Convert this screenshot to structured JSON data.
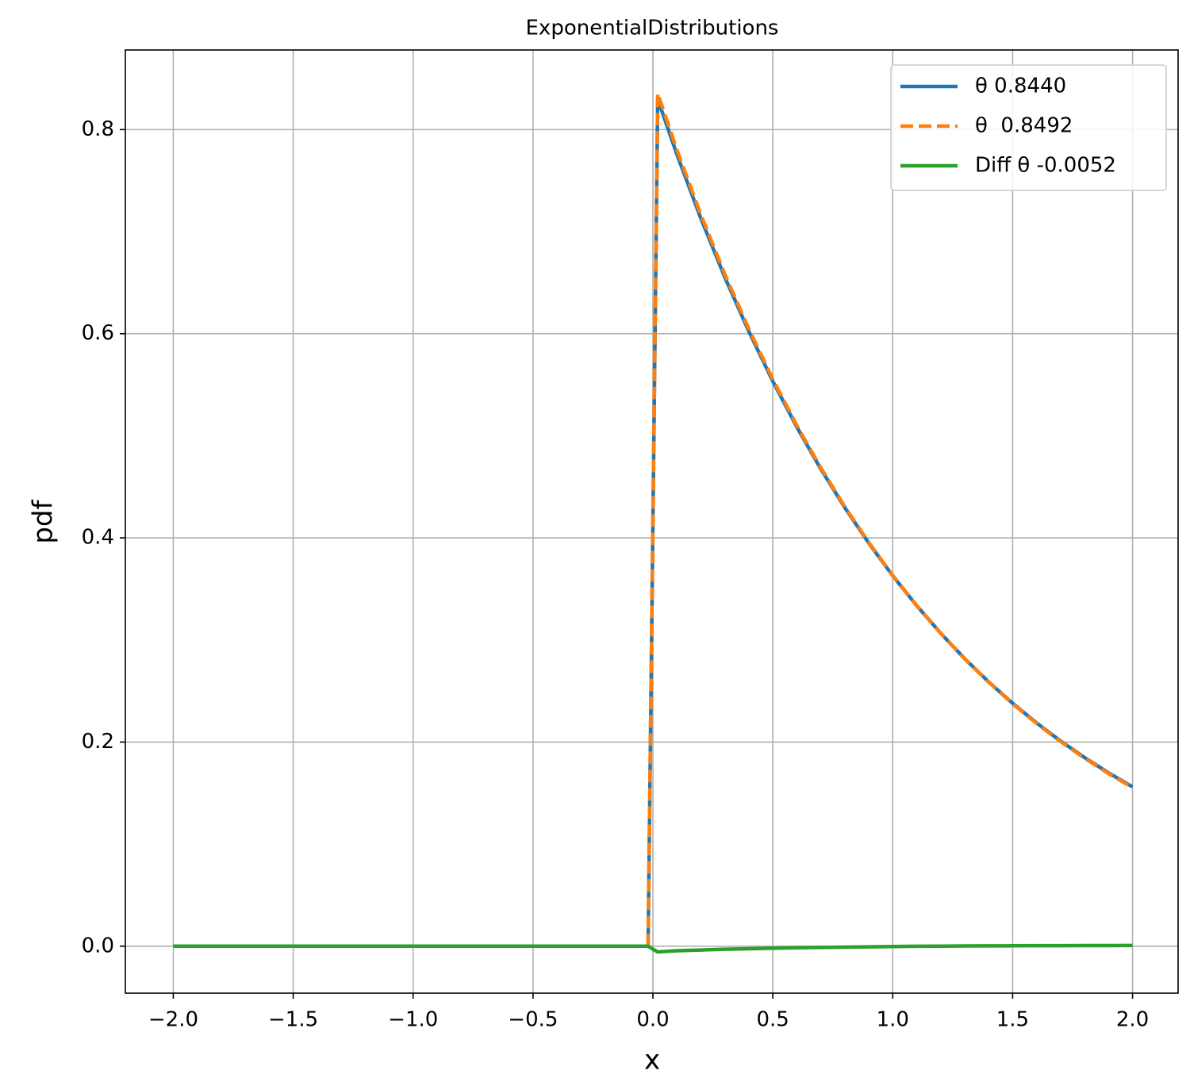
{
  "chart_data": {
    "type": "line",
    "title": "ExponentialDistributions",
    "x_label": "x",
    "y_label": "pdf",
    "x": [
      -2,
      -0.02,
      0.02,
      0.1,
      0.2,
      0.3,
      0.4,
      0.5,
      0.6,
      0.7,
      0.8,
      0.9,
      1.0,
      1.1,
      1.2,
      1.3,
      1.4,
      1.5,
      1.6,
      1.7,
      1.8,
      1.9,
      2.0
    ],
    "series": [
      {
        "name": "θ 0.8440",
        "color": "#1f77b4",
        "dash": "solid",
        "values": [
          0,
          0,
          0.8299,
          0.7757,
          0.7129,
          0.6552,
          0.6022,
          0.5534,
          0.5086,
          0.4675,
          0.4297,
          0.3949,
          0.3629,
          0.3336,
          0.3066,
          0.2817,
          0.2589,
          0.238,
          0.2187,
          0.201,
          0.1848,
          0.1698,
          0.1561
        ]
      },
      {
        "name": "θ  0.8492",
        "color": "#ff7f0e",
        "dash": "dashed",
        "values": [
          0,
          0,
          0.8355,
          0.7801,
          0.7166,
          0.6582,
          0.6047,
          0.5554,
          0.5101,
          0.4687,
          0.4306,
          0.3955,
          0.3632,
          0.3337,
          0.3066,
          0.2815,
          0.2586,
          0.2376,
          0.2182,
          0.2005,
          0.1842,
          0.1692,
          0.1554
        ]
      },
      {
        "name": "Diff θ -0.0052",
        "color": "#2ca02c",
        "dash": "solid",
        "values": [
          0,
          0,
          -0.0056,
          -0.0044,
          -0.0037,
          -0.003,
          -0.0025,
          -0.002,
          -0.0015,
          -0.0012,
          -0.0009,
          -0.0006,
          -0.0003,
          -0.0001,
          0,
          0.0002,
          0.0003,
          0.0004,
          0.0005,
          0.0005,
          0.0006,
          0.0006,
          0.0007
        ]
      }
    ],
    "xlim": [
      -2.2,
      2.19
    ],
    "ylim": [
      -0.046,
      0.878
    ],
    "xticks": [
      {
        "value": -2,
        "label": "−2.0"
      },
      {
        "value": -1.5,
        "label": "−1.5"
      },
      {
        "value": -1,
        "label": "−1.0"
      },
      {
        "value": -0.5,
        "label": "−0.5"
      },
      {
        "value": 0,
        "label": "0.0"
      },
      0.5,
      {
        "value": 1,
        "label": "1.0"
      },
      1.5,
      {
        "value": 2,
        "label": "2.0"
      }
    ],
    "yticks": [
      {
        "value": 0,
        "label": "0.0"
      },
      0.2,
      0.4,
      0.6,
      0.8
    ],
    "grid": true,
    "legend": "upper right"
  }
}
